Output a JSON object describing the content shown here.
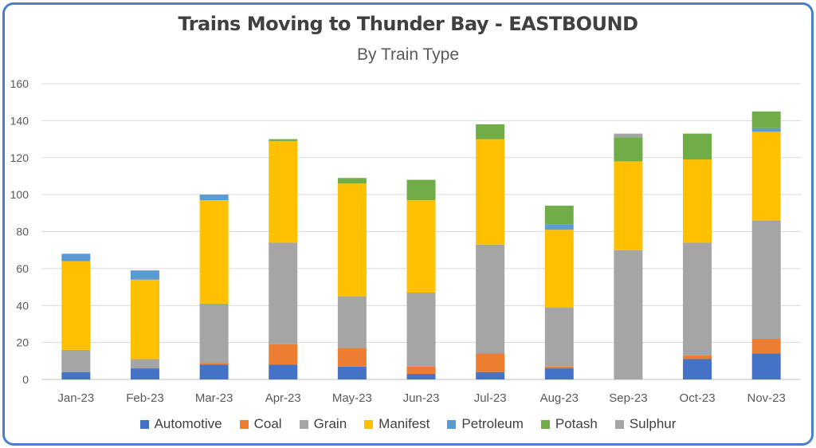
{
  "chart_data": {
    "type": "bar",
    "stacked": true,
    "title": "Trains Moving to Thunder Bay - EASTBOUND",
    "subtitle": "By Train Type",
    "categories": [
      "Jan-23",
      "Feb-23",
      "Mar-23",
      "Apr-23",
      "May-23",
      "Jun-23",
      "Jul-23",
      "Aug-23",
      "Sep-23",
      "Oct-23",
      "Nov-23"
    ],
    "ylim": [
      0,
      160
    ],
    "yticks": [
      0,
      20,
      40,
      60,
      80,
      100,
      120,
      140,
      160
    ],
    "grid": true,
    "legend_position": "bottom",
    "series": [
      {
        "name": "Automotive",
        "color": "#4472C4",
        "values": [
          4,
          6,
          8,
          8,
          7,
          3,
          4,
          6,
          0,
          11,
          14
        ]
      },
      {
        "name": "Coal",
        "color": "#ED7D31",
        "values": [
          0,
          0,
          1,
          11,
          10,
          4,
          10,
          1,
          0,
          2,
          8
        ]
      },
      {
        "name": "Grain",
        "color": "#A5A5A5",
        "values": [
          12,
          5,
          32,
          55,
          28,
          40,
          59,
          32,
          70,
          61,
          64
        ]
      },
      {
        "name": "Manifest",
        "color": "#FFC000",
        "values": [
          48,
          43,
          56,
          55,
          61,
          50,
          57,
          42,
          48,
          45,
          48
        ]
      },
      {
        "name": "Petroleum",
        "color": "#5B9BD5",
        "values": [
          4,
          5,
          3,
          0,
          0,
          0,
          0,
          3,
          0,
          0,
          2
        ]
      },
      {
        "name": "Potash",
        "color": "#70AD47",
        "values": [
          0,
          0,
          0,
          1,
          3,
          11,
          8,
          10,
          13,
          14,
          9
        ]
      },
      {
        "name": "Sulphur",
        "color": "#A5A5A5",
        "values": [
          0,
          0,
          0,
          0,
          0,
          0,
          0,
          0,
          2,
          0,
          0
        ]
      }
    ]
  }
}
